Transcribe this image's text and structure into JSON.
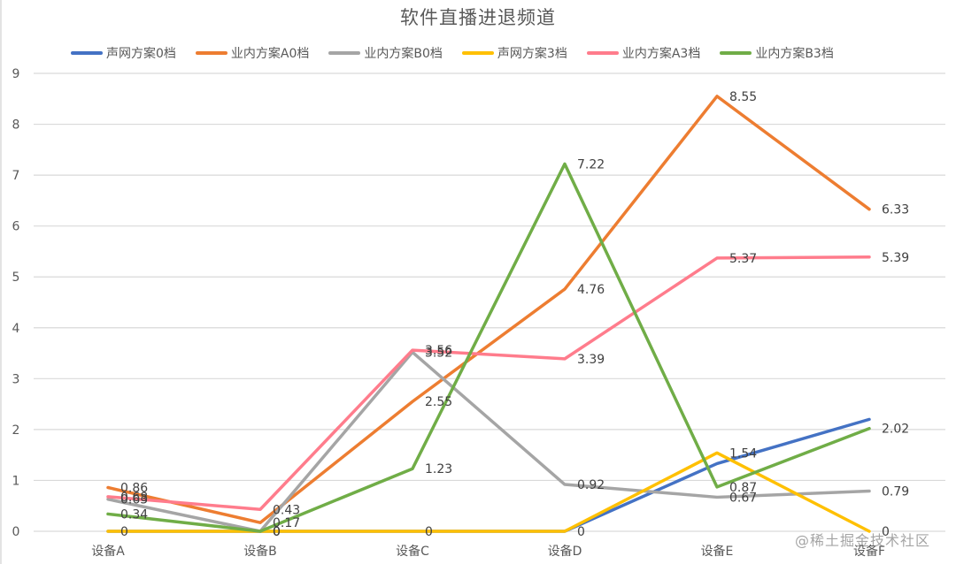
{
  "chart_data": {
    "type": "line",
    "title": "软件直播进退频道",
    "xlabel": "",
    "ylabel": "",
    "ylim": [
      0,
      9
    ],
    "yticks": [
      0,
      1,
      2,
      3,
      4,
      5,
      6,
      7,
      8,
      9
    ],
    "grid": true,
    "legend_position": "top",
    "categories": [
      "设备A",
      "设备B",
      "设备C",
      "设备D",
      "设备E",
      "设备F"
    ],
    "series": [
      {
        "name": "声网方案0档",
        "color": "#4472C4",
        "values": [
          0,
          0,
          0,
          0,
          1.33,
          2.2
        ],
        "labels": [
          null,
          null,
          null,
          null,
          null,
          null
        ]
      },
      {
        "name": "业内方案A0档",
        "color": "#ED7D31",
        "values": [
          0.86,
          0.17,
          2.55,
          4.76,
          8.55,
          6.33
        ],
        "labels": [
          "0.86",
          "0.17",
          "2.55",
          "4.76",
          "8.55",
          "6.33"
        ]
      },
      {
        "name": "业内方案B0档",
        "color": "#A5A5A5",
        "values": [
          0.63,
          0,
          3.52,
          0.92,
          0.67,
          0.79
        ],
        "labels": [
          "0.63",
          "0",
          "3.52",
          "0.92",
          "0.67",
          "0.79"
        ]
      },
      {
        "name": "声网方案3档",
        "color": "#FFC000",
        "values": [
          0,
          0,
          0,
          0,
          1.54,
          0
        ],
        "labels": [
          "0",
          "0",
          "0",
          "0",
          "1.54",
          "0"
        ]
      },
      {
        "name": "业内方案A3档",
        "color": "#FF7C8C",
        "values": [
          0.68,
          0.43,
          3.56,
          3.39,
          5.37,
          5.39
        ],
        "labels": [
          "0.68",
          "0.43",
          "3.56",
          "3.39",
          "5.37",
          "5.39"
        ]
      },
      {
        "name": "业内方案B3档",
        "color": "#70AD47",
        "values": [
          0.34,
          0,
          1.23,
          7.22,
          0.87,
          2.02
        ],
        "labels": [
          "0.34",
          "0",
          "1.23",
          "7.22",
          "0.87",
          "2.02"
        ]
      }
    ]
  },
  "watermark": "@稀土掘金技术社区"
}
